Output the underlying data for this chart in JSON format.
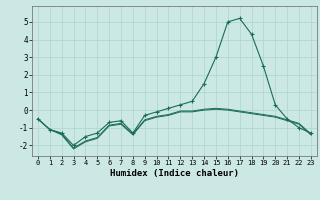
{
  "xlabel": "Humidex (Indice chaleur)",
  "ylabel": "",
  "background_color": "#cce8e4",
  "grid_color": "#b0d8d4",
  "line_color": "#1a6b5a",
  "xlim": [
    -0.5,
    23.5
  ],
  "ylim": [
    -2.6,
    5.9
  ],
  "xticks": [
    0,
    1,
    2,
    3,
    4,
    5,
    6,
    7,
    8,
    9,
    10,
    11,
    12,
    13,
    14,
    15,
    16,
    17,
    18,
    19,
    20,
    21,
    22,
    23
  ],
  "yticks": [
    -2,
    -1,
    0,
    1,
    2,
    3,
    4,
    5
  ],
  "line_main": {
    "x": [
      0,
      1,
      2,
      3,
      4,
      5,
      6,
      7,
      8,
      9,
      10,
      11,
      12,
      13,
      14,
      15,
      16,
      17,
      18,
      19,
      20,
      21,
      22,
      23
    ],
    "y": [
      -0.5,
      -1.1,
      -1.3,
      -2.0,
      -1.5,
      -1.3,
      -0.7,
      -0.6,
      -1.3,
      -0.3,
      -0.1,
      0.1,
      0.3,
      0.5,
      1.5,
      3.0,
      5.0,
      5.2,
      4.3,
      2.5,
      0.3,
      -0.5,
      -1.0,
      -1.3
    ]
  },
  "line_low1": {
    "x": [
      0,
      1,
      2,
      3,
      4,
      5,
      6,
      7,
      8,
      9,
      10,
      11,
      12,
      13,
      14,
      15,
      16,
      17,
      18,
      19,
      20,
      21,
      22,
      23
    ],
    "y": [
      -0.5,
      -1.1,
      -1.35,
      -2.15,
      -1.75,
      -1.55,
      -0.85,
      -0.75,
      -1.35,
      -0.55,
      -0.35,
      -0.25,
      -0.05,
      -0.05,
      0.05,
      0.1,
      0.05,
      -0.05,
      -0.15,
      -0.25,
      -0.35,
      -0.55,
      -0.75,
      -1.35
    ]
  },
  "line_low2": {
    "x": [
      0,
      1,
      2,
      3,
      4,
      5,
      6,
      7,
      8,
      9,
      10,
      11,
      12,
      13,
      14,
      15,
      16,
      17,
      18,
      19,
      20,
      21,
      22,
      23
    ],
    "y": [
      -0.5,
      -1.1,
      -1.4,
      -2.2,
      -1.8,
      -1.6,
      -0.9,
      -0.8,
      -1.4,
      -0.6,
      -0.4,
      -0.3,
      -0.1,
      -0.1,
      0.0,
      0.05,
      0.0,
      -0.1,
      -0.2,
      -0.3,
      -0.4,
      -0.6,
      -0.8,
      -1.4
    ]
  }
}
